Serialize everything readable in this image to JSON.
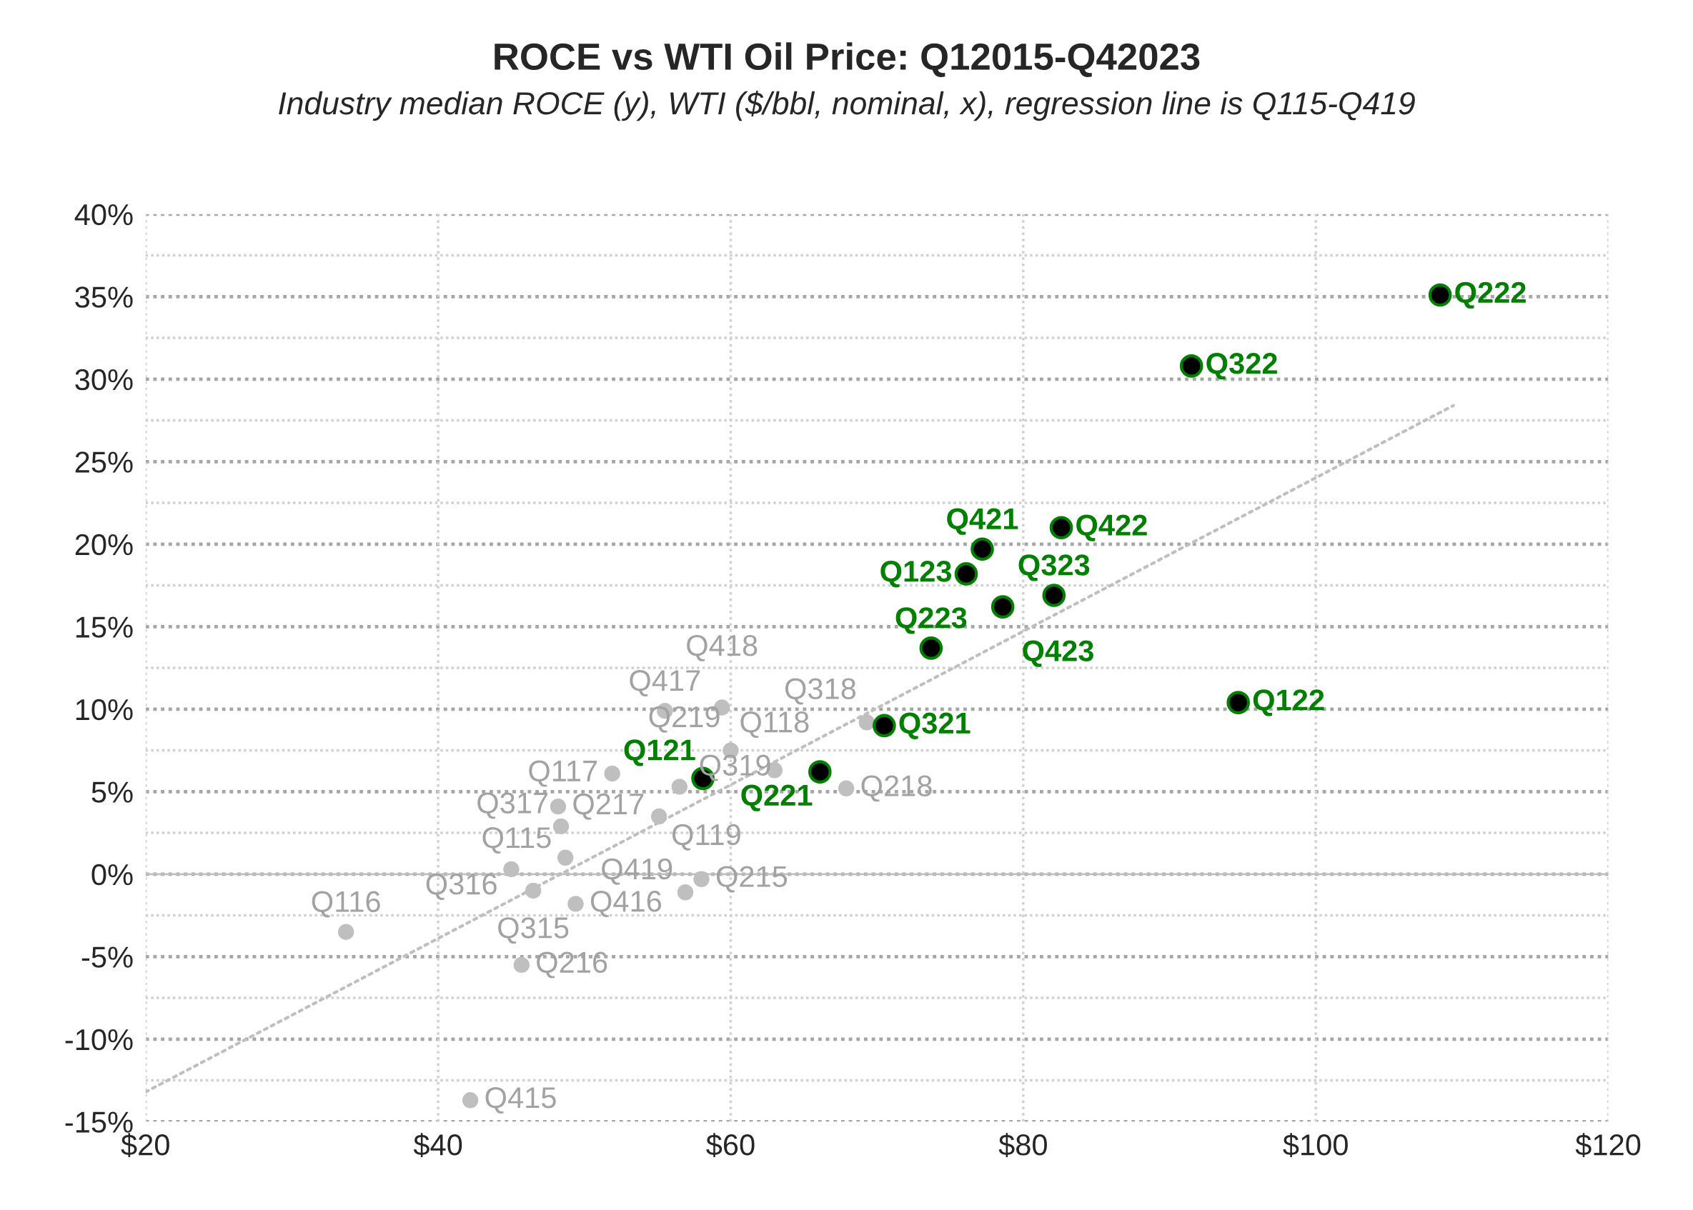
{
  "chart_data": {
    "type": "scatter",
    "title": "ROCE vs WTI Oil Price: Q12015-Q42023",
    "subtitle": "Industry median ROCE (y), WTI ($/bbl, nominal, x), regression line is Q115-Q419",
    "xlim": [
      20,
      120
    ],
    "ylim": [
      -15,
      40
    ],
    "xticks": [
      {
        "value": 20,
        "label": "$20"
      },
      {
        "value": 40,
        "label": "$40"
      },
      {
        "value": 60,
        "label": "$60"
      },
      {
        "value": 80,
        "label": "$80"
      },
      {
        "value": 100,
        "label": "$100"
      },
      {
        "value": 120,
        "label": "$120"
      }
    ],
    "yticks": [
      {
        "value": -15,
        "label": "-15%"
      },
      {
        "value": -10,
        "label": "-10%"
      },
      {
        "value": -5,
        "label": "-5%"
      },
      {
        "value": 0,
        "label": "0%"
      },
      {
        "value": 5,
        "label": "5%"
      },
      {
        "value": 10,
        "label": "10%"
      },
      {
        "value": 15,
        "label": "15%"
      },
      {
        "value": 20,
        "label": "20%"
      },
      {
        "value": 25,
        "label": "25%"
      },
      {
        "value": 30,
        "label": "30%"
      },
      {
        "value": 35,
        "label": "35%"
      },
      {
        "value": 40,
        "label": "40%"
      }
    ],
    "grid": true,
    "marker": "circle",
    "legend": false,
    "ref_lines": [
      {
        "axis": "y",
        "value": 0,
        "color": "#bfbfbf",
        "line_style": "solid"
      }
    ],
    "series": [
      {
        "type": "line",
        "color": "#bfbfbf",
        "line_style": "dotted",
        "marker": "none",
        "x": [
          20,
          109.4
        ],
        "values": [
          -13.2,
          28.4
        ]
      },
      {
        "color": "#bfbfbf",
        "x": [
          48.7,
          58.0,
          46.5,
          42.2,
          33.7,
          45.7,
          45.0,
          49.4,
          51.9,
          48.2,
          48.4,
          55.5,
          63.0,
          67.9,
          69.3,
          59.4,
          55.1,
          60.0,
          56.5,
          56.9
        ],
        "values": [
          1.0,
          -0.3,
          -1.0,
          -13.7,
          -3.5,
          -5.5,
          0.3,
          -1.8,
          6.1,
          4.1,
          2.9,
          9.9,
          6.3,
          5.2,
          9.2,
          10.1,
          3.5,
          7.5,
          5.3,
          -1.1
        ],
        "value_labels": [
          "Q115",
          "Q215",
          "Q315",
          "Q415",
          "Q116",
          "Q216",
          "Q316",
          "Q416",
          "Q117",
          "Q217",
          "Q317",
          "Q417",
          "Q118",
          "Q218",
          "Q318",
          "Q418",
          "Q119",
          "Q219",
          "Q319",
          "Q419"
        ]
      },
      {
        "color": "#008000",
        "x": [
          58.1,
          66.1,
          70.5,
          77.2,
          94.7,
          108.5,
          91.5,
          82.6,
          76.1,
          73.7,
          82.1,
          78.6
        ],
        "values": [
          5.8,
          6.2,
          9.0,
          19.7,
          10.4,
          35.1,
          30.8,
          21.0,
          18.2,
          13.7,
          16.9,
          16.2
        ],
        "value_labels": [
          "Q121",
          "Q221",
          "Q321",
          "Q421",
          "Q122",
          "Q222",
          "Q322",
          "Q422",
          "Q123",
          "Q223",
          "Q323",
          "Q423"
        ]
      }
    ]
  }
}
